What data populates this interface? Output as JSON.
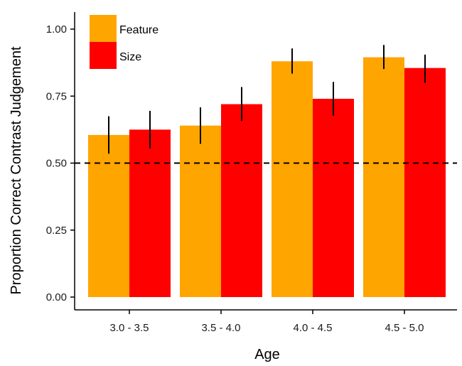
{
  "chart_data": {
    "type": "bar",
    "title": "",
    "xlabel": "Age",
    "ylabel": "Proportion Correct Contrast Judgement",
    "categories": [
      "3.0 - 3.5",
      "3.5 - 4.0",
      "4.0 - 4.5",
      "4.5 - 5.0"
    ],
    "series": [
      {
        "name": "Feature",
        "color": "#FFA500",
        "values": [
          0.605,
          0.64,
          0.88,
          0.895
        ],
        "error_low": [
          0.535,
          0.572,
          0.834,
          0.851
        ],
        "error_high": [
          0.675,
          0.708,
          0.928,
          0.941
        ]
      },
      {
        "name": "Size",
        "color": "#FF0000",
        "values": [
          0.625,
          0.72,
          0.74,
          0.855
        ],
        "error_low": [
          0.555,
          0.657,
          0.677,
          0.8
        ],
        "error_high": [
          0.695,
          0.784,
          0.803,
          0.905
        ]
      }
    ],
    "ylim": [
      0,
      1.04
    ],
    "yticks": [
      0,
      0.25,
      0.5,
      0.75,
      1.0
    ],
    "ytick_labels": [
      "0.00",
      "0.25",
      "0.50",
      "0.75",
      "1.00"
    ],
    "reference_line": {
      "y": 0.5,
      "style": "dashed"
    },
    "legend": {
      "placement": "top-left"
    },
    "grid": false
  }
}
